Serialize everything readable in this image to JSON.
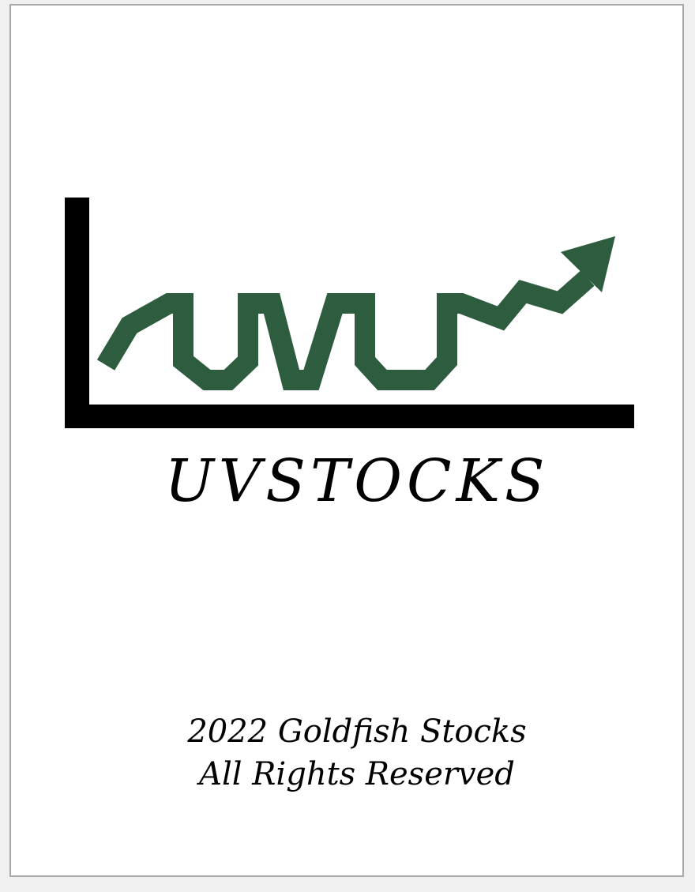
{
  "logo": {
    "icon": "stock-chart-up-arrow-icon",
    "axis_color": "#000000",
    "line_color": "#2e5c3e"
  },
  "brand": {
    "name": "UVSTOCKS"
  },
  "footer": {
    "line1": "2022 Goldfish Stocks",
    "line2": "All Rights Reserved"
  }
}
